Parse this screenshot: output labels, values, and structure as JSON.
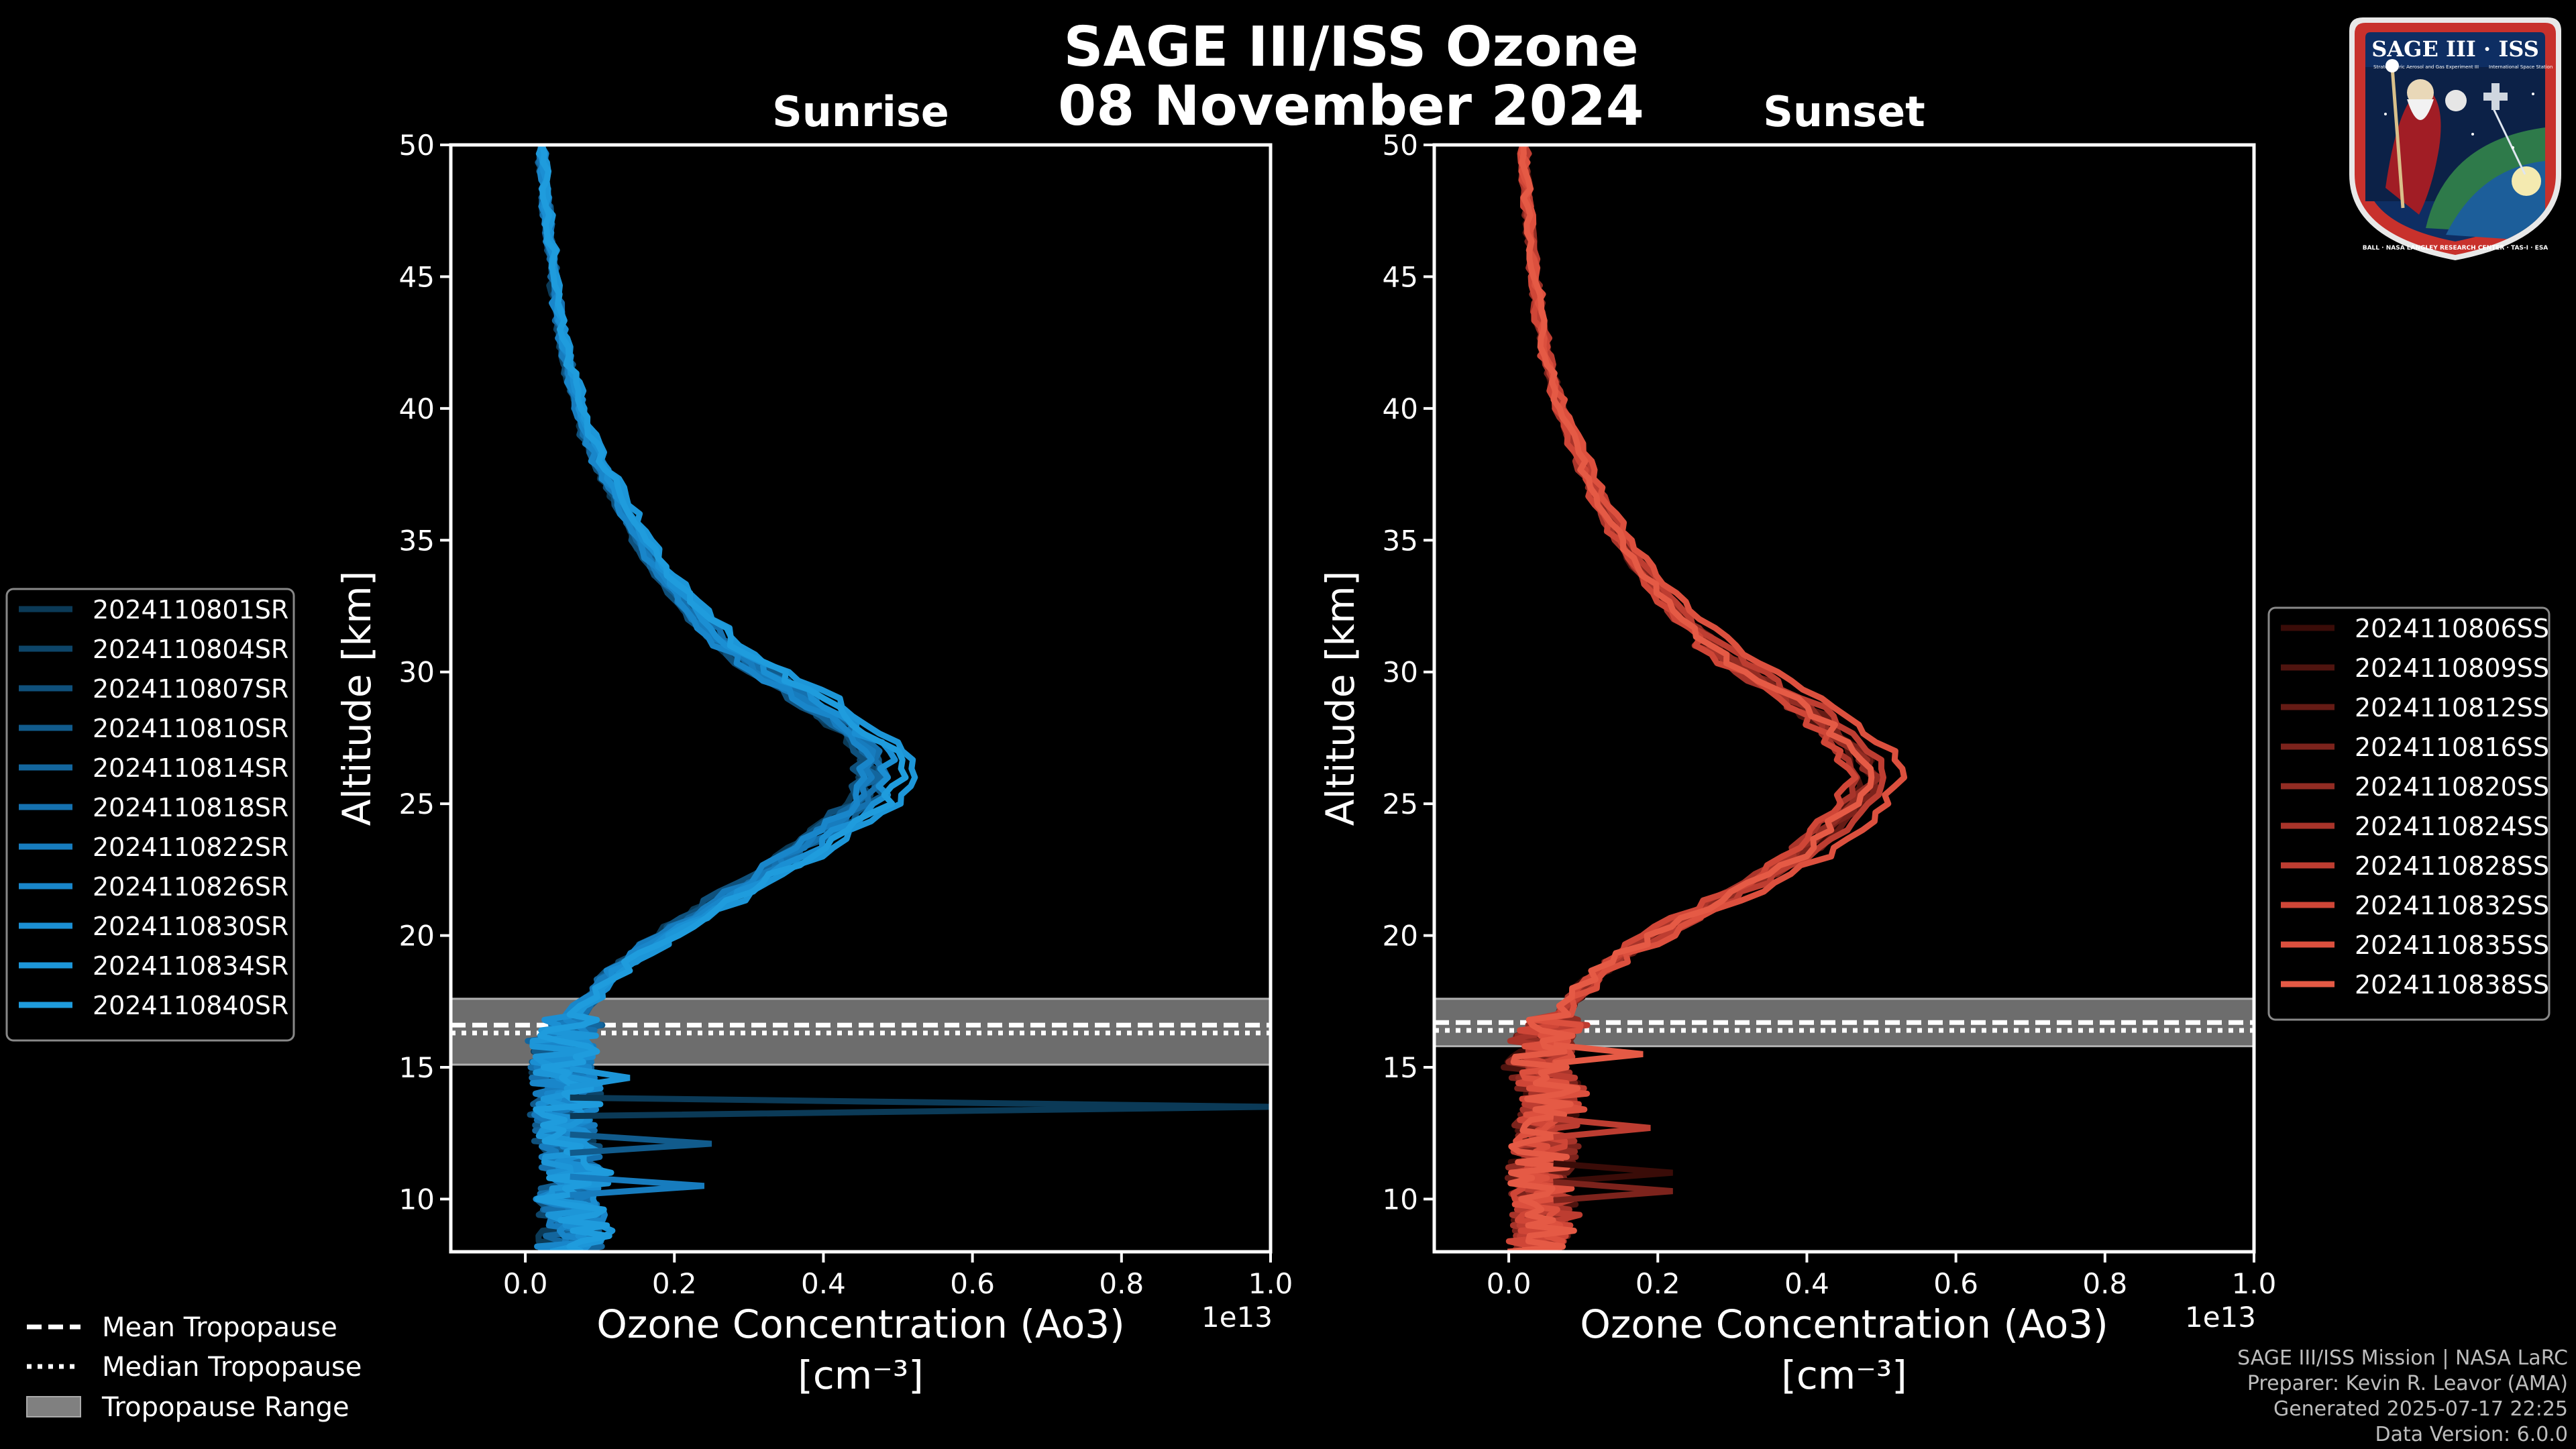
{
  "chart_data": [
    {
      "type": "line",
      "panel": "sunrise",
      "title": "Sunrise",
      "xlabel": "Ozone Concentration (Ao3)",
      "xlabel_unit": "[cm⁻³]",
      "ylabel": "Altitude [km]",
      "xlim": [
        -0.1,
        1.0
      ],
      "ylim": [
        8,
        50
      ],
      "x_scale_label": "1e13",
      "x_ticks": [
        0.0,
        0.2,
        0.4,
        0.6,
        0.8,
        1.0
      ],
      "x_tick_labels": [
        "0.0",
        "0.2",
        "0.4",
        "0.6",
        "0.8",
        "1.0"
      ],
      "y_ticks": [
        10,
        15,
        20,
        25,
        30,
        35,
        40,
        45,
        50
      ],
      "y_tick_labels": [
        "10",
        "15",
        "20",
        "25",
        "30",
        "35",
        "40",
        "45",
        "50"
      ],
      "tropopause": {
        "range": [
          15.1,
          17.6
        ],
        "mean": 16.6,
        "median": 16.3
      },
      "line_color": "#1f9bdc",
      "legend_position": "outside-left",
      "series": [
        {
          "name": "2024110801SR",
          "color": "#0b3a57"
        },
        {
          "name": "2024110804SR",
          "color": "#0d4569"
        },
        {
          "name": "2024110807SR",
          "color": "#0f507b"
        },
        {
          "name": "2024110810SR",
          "color": "#115b8c"
        },
        {
          "name": "2024110814SR",
          "color": "#13669e"
        },
        {
          "name": "2024110818SR",
          "color": "#1571af"
        },
        {
          "name": "2024110822SR",
          "color": "#177cbe"
        },
        {
          "name": "2024110826SR",
          "color": "#1986ca"
        },
        {
          "name": "2024110830SR",
          "color": "#1b8fd3"
        },
        {
          "name": "2024110834SR",
          "color": "#1d96d8"
        },
        {
          "name": "2024110840SR",
          "color": "#1f9cdd"
        }
      ],
      "profile": {
        "altitude": [
          8,
          9,
          10,
          11,
          12,
          13,
          14,
          15,
          16,
          17,
          18,
          19,
          20,
          21,
          22,
          23,
          24,
          25,
          26,
          27,
          28,
          29,
          30,
          31,
          32,
          33,
          34,
          35,
          36,
          37,
          38,
          39,
          40,
          41,
          42,
          43,
          44,
          45,
          46,
          47,
          48,
          49,
          50
        ],
        "ozone": [
          0.06,
          0.07,
          0.06,
          0.07,
          0.06,
          0.05,
          0.06,
          0.05,
          0.05,
          0.07,
          0.1,
          0.14,
          0.19,
          0.25,
          0.31,
          0.37,
          0.42,
          0.47,
          0.49,
          0.48,
          0.44,
          0.39,
          0.33,
          0.28,
          0.24,
          0.21,
          0.18,
          0.16,
          0.14,
          0.12,
          0.1,
          0.085,
          0.075,
          0.065,
          0.057,
          0.05,
          0.044,
          0.039,
          0.035,
          0.031,
          0.028,
          0.025,
          0.022
        ]
      },
      "spikes": [
        {
          "altitude": 13.5,
          "ozone": 1.0
        },
        {
          "altitude": 12.1,
          "ozone": 0.25
        },
        {
          "altitude": 10.5,
          "ozone": 0.24
        },
        {
          "altitude": 14.6,
          "ozone": 0.14
        }
      ]
    },
    {
      "type": "line",
      "panel": "sunset",
      "title": "Sunset",
      "xlabel": "Ozone Concentration (Ao3)",
      "xlabel_unit": "[cm⁻³]",
      "ylabel": "Altitude [km]",
      "xlim": [
        -0.1,
        1.0
      ],
      "ylim": [
        8,
        50
      ],
      "x_scale_label": "1e13",
      "x_ticks": [
        0.0,
        0.2,
        0.4,
        0.6,
        0.8,
        1.0
      ],
      "x_tick_labels": [
        "0.0",
        "0.2",
        "0.4",
        "0.6",
        "0.8",
        "1.0"
      ],
      "y_ticks": [
        10,
        15,
        20,
        25,
        30,
        35,
        40,
        45,
        50
      ],
      "y_tick_labels": [
        "10",
        "15",
        "20",
        "25",
        "30",
        "35",
        "40",
        "45",
        "50"
      ],
      "tropopause": {
        "range": [
          15.8,
          17.6
        ],
        "mean": 16.7,
        "median": 16.4
      },
      "line_color": "#e35a48",
      "legend_position": "outside-right",
      "series": [
        {
          "name": "2024110806SS",
          "color": "#3a0c08"
        },
        {
          "name": "2024110809SS",
          "color": "#4f140f"
        },
        {
          "name": "2024110812SS",
          "color": "#651b15"
        },
        {
          "name": "2024110816SS",
          "color": "#7c231c"
        },
        {
          "name": "2024110820SS",
          "color": "#922c23"
        },
        {
          "name": "2024110824SS",
          "color": "#a8342a"
        },
        {
          "name": "2024110828SS",
          "color": "#bd3d31"
        },
        {
          "name": "2024110832SS",
          "color": "#cf4637"
        },
        {
          "name": "2024110835SS",
          "color": "#dc503e"
        },
        {
          "name": "2024110838SS",
          "color": "#e55a45"
        }
      ],
      "profile": {
        "altitude": [
          8,
          9,
          10,
          11,
          12,
          13,
          14,
          15,
          16,
          17,
          18,
          19,
          20,
          21,
          22,
          23,
          24,
          25,
          26,
          27,
          28,
          29,
          30,
          31,
          32,
          33,
          34,
          35,
          36,
          37,
          38,
          39,
          40,
          41,
          42,
          43,
          44,
          45,
          46,
          47,
          48,
          49,
          50
        ],
        "ozone": [
          0.04,
          0.05,
          0.05,
          0.04,
          0.05,
          0.05,
          0.06,
          0.04,
          0.05,
          0.07,
          0.1,
          0.14,
          0.2,
          0.27,
          0.34,
          0.4,
          0.44,
          0.48,
          0.5,
          0.48,
          0.44,
          0.39,
          0.33,
          0.28,
          0.24,
          0.21,
          0.18,
          0.155,
          0.135,
          0.115,
          0.1,
          0.085,
          0.07,
          0.06,
          0.052,
          0.045,
          0.04,
          0.035,
          0.031,
          0.028,
          0.025,
          0.022,
          0.02
        ]
      },
      "spikes": [
        {
          "altitude": 11.0,
          "ozone": 0.22
        },
        {
          "altitude": 10.3,
          "ozone": 0.22
        },
        {
          "altitude": 12.7,
          "ozone": 0.19
        },
        {
          "altitude": 15.5,
          "ozone": 0.18
        }
      ]
    }
  ],
  "header": {
    "title": "SAGE III/ISS Ozone",
    "date": "08 November 2024"
  },
  "tropopause_legend": {
    "mean": "Mean Tropopause",
    "median": "Median Tropopause",
    "range": "Tropopause Range"
  },
  "logo": {
    "title": "SAGE III · ISS",
    "subtitle_left": "Stratospheric Aerosol and Gas Experiment III",
    "subtitle_right": "International Space Station",
    "ring_text": "BALL · NASA LANGLEY RESEARCH CENTER · TAS-I · ESA"
  },
  "footer": {
    "mission": "SAGE III/ISS Mission | NASA LaRC",
    "preparer": "Preparer: Kevin R. Leavor (AMA)",
    "generated": "Generated 2025-07-17 22:25",
    "data_version": "Data Version: 6.0.0"
  },
  "colors": {
    "background": "#000000",
    "axes": "#ffffff",
    "tropopause_band": "#808080"
  }
}
